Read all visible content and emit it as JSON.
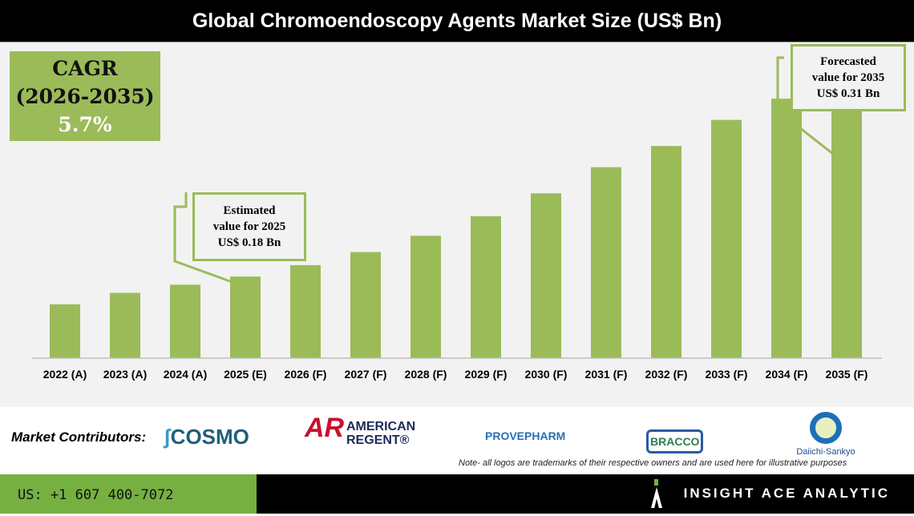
{
  "title": "Global Chromoendoscopy Agents Market Size (US$ Bn)",
  "cagr": {
    "label": "CAGR",
    "period": "(2026-2035)",
    "value": "5.7%"
  },
  "callouts": {
    "estimated": [
      "Estimated",
      "value for 2025",
      "US$ 0.18 Bn"
    ],
    "forecast": [
      "Forecasted",
      "value for 2035",
      "US$ 0.31 Bn"
    ]
  },
  "chart_data": {
    "type": "bar",
    "title": "Global Chromoendoscopy Agents Market Size (US$ Bn)",
    "categories": [
      "2022 (A)",
      "2023 (A)",
      "2024 (A)",
      "2025 (E)",
      "2026 (F)",
      "2027 (F)",
      "2028 (F)",
      "2029 (F)",
      "2030 (F)",
      "2031 (F)",
      "2032 (F)",
      "2033 (F)",
      "2034 (F)",
      "2035 (F)"
    ],
    "values": [
      0.163,
      0.17,
      0.175,
      0.18,
      0.187,
      0.195,
      0.205,
      0.217,
      0.231,
      0.247,
      0.26,
      0.276,
      0.289,
      0.31
    ],
    "ylim": [
      0.13,
      0.32
    ],
    "grid": false,
    "bar_color": "#9bbb59"
  },
  "contributors": {
    "label": "Market Contributors:",
    "logos": [
      "COSMO",
      "AMERICAN",
      "REGENT®",
      "PROVEPHARM",
      "BRACCO",
      "Daiichi-Sankyo"
    ]
  },
  "note": "Note- all logos are trademarks of their respective owners and are used here for illustrative purposes",
  "footer": {
    "phone": "US: +1 607 400-7072",
    "brand": "INSIGHT ACE ANALYTIC"
  }
}
